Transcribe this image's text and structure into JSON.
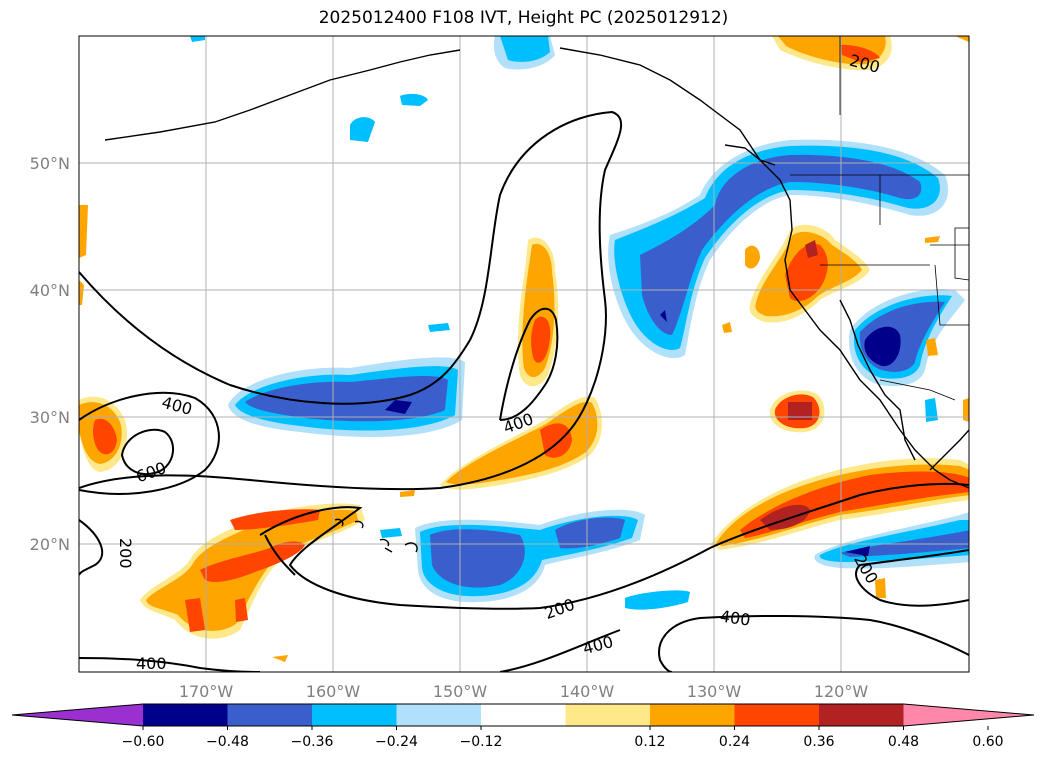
{
  "title": "2025012400 F108 IVT, Height PC (2025012912)",
  "map": {
    "lat_labels": [
      "50°N",
      "40°N",
      "30°N",
      "20°N"
    ],
    "lon_labels": [
      "170°W",
      "160°W",
      "150°W",
      "140°W",
      "130°W",
      "120°W"
    ]
  },
  "contours": {
    "labels": [
      "200",
      "400",
      "600",
      "200",
      "400",
      "200",
      "400",
      "400",
      "200",
      "400"
    ]
  },
  "colorbar": {
    "ticks": [
      "−0.60",
      "−0.48",
      "−0.36",
      "−0.24",
      "−0.12",
      "0.12",
      "0.24",
      "0.36",
      "0.48",
      "0.60"
    ],
    "colors": [
      "#9b30d0",
      "#00008b",
      "#3a5fcd",
      "#00bfff",
      "#b0e0fa",
      "#ffffff",
      "#ffe88a",
      "#ffa500",
      "#ff4500",
      "#b22222",
      "#ff88aa"
    ]
  }
}
